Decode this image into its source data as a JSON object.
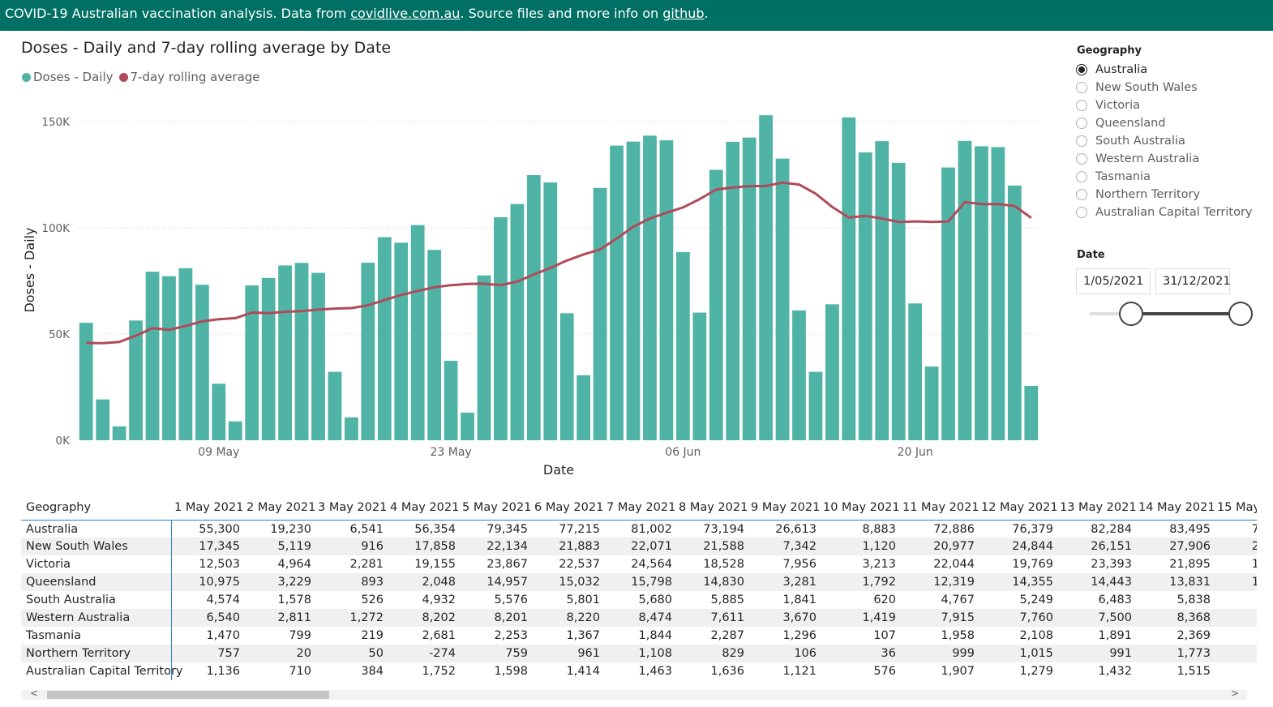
{
  "header": {
    "text_before": "COVID-19 Australian vaccination analysis. Data from ",
    "link1": "covidlive.com.au",
    "text_middle": ". Source files and more info on ",
    "link2": "github",
    "text_after": "."
  },
  "chart_title": "Doses - Daily and 7-day rolling average by Date",
  "legend": [
    {
      "label": "Doses - Daily",
      "color": "#4fb3a6"
    },
    {
      "label": "7-day rolling average",
      "color": "#b04b5a"
    }
  ],
  "chart_data": {
    "type": "bar",
    "xlabel": "Date",
    "ylabel": "Doses - Daily",
    "ylim": [
      0,
      160000
    ],
    "yticks": [
      {
        "v": 0,
        "label": "0K"
      },
      {
        "v": 50000,
        "label": "50K"
      },
      {
        "v": 100000,
        "label": "100K"
      },
      {
        "v": 150000,
        "label": "150K"
      }
    ],
    "xticks": [
      {
        "index": 8,
        "label": "09 May"
      },
      {
        "index": 22,
        "label": "23 May"
      },
      {
        "index": 36,
        "label": "06 Jun"
      },
      {
        "index": 50,
        "label": "20 Jun"
      }
    ],
    "grid": true,
    "dates_start": "1 May 2021",
    "series": [
      {
        "name": "Doses - Daily",
        "type": "bar",
        "color": "#4fb3a6",
        "values": [
          55300,
          19230,
          6541,
          56354,
          79345,
          77215,
          81002,
          73194,
          26613,
          8883,
          72886,
          76379,
          82284,
          83495,
          78800,
          32200,
          10800,
          83600,
          95600,
          93000,
          101300,
          89600,
          37400,
          13000,
          77600,
          105000,
          111200,
          124800,
          121400,
          59800,
          30600,
          118800,
          138700,
          140600,
          143400,
          141200,
          88600,
          60100,
          127300,
          140500,
          142500,
          153000,
          132600,
          61100,
          32200,
          64000,
          152000,
          135500,
          140800,
          130600,
          64400,
          34700,
          128400,
          140900,
          138400,
          138000,
          119900,
          25600
        ]
      },
      {
        "name": "7-day rolling average",
        "type": "line",
        "color": "#b04b5a",
        "values": [
          45800,
          45700,
          46300,
          49200,
          52800,
          52000,
          53800,
          56000,
          57000,
          57500,
          60100,
          59800,
          60500,
          60800,
          61500,
          62000,
          62200,
          63500,
          66000,
          68400,
          70300,
          72000,
          73000,
          73600,
          73700,
          73000,
          74700,
          78000,
          81100,
          84600,
          87500,
          89800,
          95000,
          100500,
          104400,
          107100,
          109600,
          113500,
          118000,
          119000,
          119600,
          119700,
          121300,
          120400,
          116100,
          109800,
          104800,
          105600,
          104400,
          102800,
          103000,
          102800,
          103000,
          112100,
          111200,
          111200,
          110300,
          104700
        ]
      }
    ]
  },
  "geography": {
    "title": "Geography",
    "options": [
      "Australia",
      "New South Wales",
      "Victoria",
      "Queensland",
      "South Australia",
      "Western Australia",
      "Tasmania",
      "Northern Territory",
      "Australian Capital Territory"
    ],
    "selected": "Australia"
  },
  "date_filter": {
    "title": "Date",
    "start": "1/05/2021",
    "end": "31/12/2021"
  },
  "table": {
    "first_header": "Geography",
    "columns": [
      "1 May 2021",
      "2 May 2021",
      "3 May 2021",
      "4 May 2021",
      "5 May 2021",
      "6 May 2021",
      "7 May 2021",
      "8 May 2021",
      "9 May 2021",
      "10 May 2021",
      "11 May 2021",
      "12 May 2021",
      "13 May 2021",
      "14 May 2021",
      "15 May"
    ],
    "rows": [
      {
        "name": "Australia",
        "values": [
          "55,300",
          "19,230",
          "6,541",
          "56,354",
          "79,345",
          "77,215",
          "81,002",
          "73,194",
          "26,613",
          "8,883",
          "72,886",
          "76,379",
          "82,284",
          "83,495",
          "7"
        ]
      },
      {
        "name": "New South Wales",
        "values": [
          "17,345",
          "5,119",
          "916",
          "17,858",
          "22,134",
          "21,883",
          "22,071",
          "21,588",
          "7,342",
          "1,120",
          "20,977",
          "24,844",
          "26,151",
          "27,906",
          "2"
        ]
      },
      {
        "name": "Victoria",
        "values": [
          "12,503",
          "4,964",
          "2,281",
          "19,155",
          "23,867",
          "22,537",
          "24,564",
          "18,528",
          "7,956",
          "3,213",
          "22,044",
          "19,769",
          "23,393",
          "21,895",
          "1"
        ]
      },
      {
        "name": "Queensland",
        "values": [
          "10,975",
          "3,229",
          "893",
          "2,048",
          "14,957",
          "15,032",
          "15,798",
          "14,830",
          "3,281",
          "1,792",
          "12,319",
          "14,355",
          "14,443",
          "13,831",
          "1"
        ]
      },
      {
        "name": "South Australia",
        "values": [
          "4,574",
          "1,578",
          "526",
          "4,932",
          "5,576",
          "5,801",
          "5,680",
          "5,885",
          "1,841",
          "620",
          "4,767",
          "5,249",
          "6,483",
          "5,838",
          ""
        ]
      },
      {
        "name": "Western Australia",
        "values": [
          "6,540",
          "2,811",
          "1,272",
          "8,202",
          "8,201",
          "8,220",
          "8,474",
          "7,611",
          "3,670",
          "1,419",
          "7,915",
          "7,760",
          "7,500",
          "8,368",
          ""
        ]
      },
      {
        "name": "Tasmania",
        "values": [
          "1,470",
          "799",
          "219",
          "2,681",
          "2,253",
          "1,367",
          "1,844",
          "2,287",
          "1,296",
          "107",
          "1,958",
          "2,108",
          "1,891",
          "2,369",
          ""
        ]
      },
      {
        "name": "Northern Territory",
        "values": [
          "757",
          "20",
          "50",
          "-274",
          "759",
          "961",
          "1,108",
          "829",
          "106",
          "36",
          "999",
          "1,015",
          "991",
          "1,773",
          ""
        ]
      },
      {
        "name": "Australian Capital Territory",
        "values": [
          "1,136",
          "710",
          "384",
          "1,752",
          "1,598",
          "1,414",
          "1,463",
          "1,636",
          "1,121",
          "576",
          "1,907",
          "1,279",
          "1,432",
          "1,515",
          ""
        ]
      }
    ]
  },
  "scroll_arrows": {
    "left": "<",
    "right": ">"
  }
}
